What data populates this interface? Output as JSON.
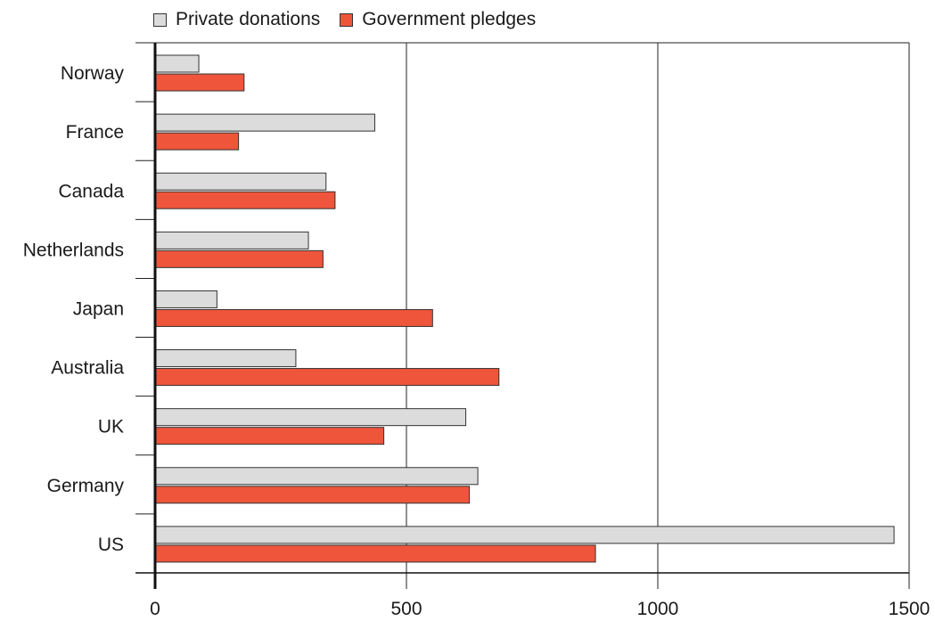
{
  "chart_data": {
    "type": "bar",
    "orientation": "horizontal",
    "title": "",
    "xlabel": "",
    "ylabel": "",
    "categories": [
      "Norway",
      "France",
      "Canada",
      "Netherlands",
      "Japan",
      "Australia",
      "UK",
      "Germany",
      "US"
    ],
    "series": [
      {
        "name": "Private donations",
        "color": "#dcdcdc",
        "values": [
          87,
          437,
          340,
          305,
          123,
          280,
          618,
          642,
          1470
        ]
      },
      {
        "name": "Government pledges",
        "color": "#ef553b",
        "values": [
          177,
          166,
          358,
          334,
          552,
          684,
          455,
          625,
          876
        ]
      }
    ],
    "xlim": [
      0,
      1500
    ],
    "xticks": [
      0,
      500,
      1000,
      1500
    ],
    "xtick_labels": [
      "0",
      "500",
      "1000",
      "1500"
    ],
    "grid": "vertical",
    "legend_position": "top-left"
  }
}
